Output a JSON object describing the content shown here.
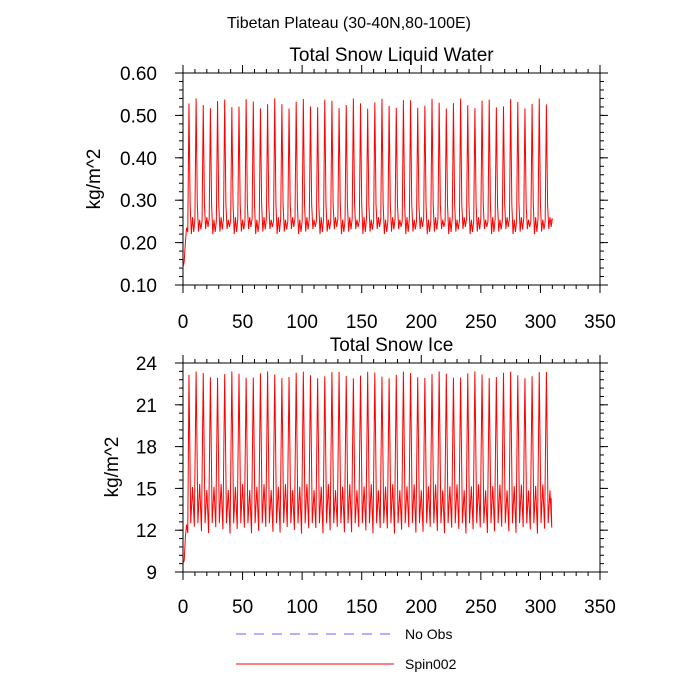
{
  "figure": {
    "title": "Tibetan Plateau (30-40N,80-100E)"
  },
  "chart_data": [
    {
      "type": "line",
      "title": "Total Snow Liquid Water",
      "xlabel": "",
      "ylabel": "kg/m^2",
      "xlim": [
        0,
        350
      ],
      "ylim": [
        0.1,
        0.6
      ],
      "xticks": [
        0,
        50,
        100,
        150,
        200,
        250,
        300,
        350
      ],
      "xtick_labels": [
        "0",
        "50",
        "100",
        "150",
        "200",
        "250",
        "300",
        "350"
      ],
      "yticks": [
        0.1,
        0.2,
        0.3,
        0.4,
        0.5,
        0.6
      ],
      "ytick_labels": [
        "0.10",
        "0.20",
        "0.30",
        "0.40",
        "0.50",
        "0.60"
      ],
      "series": [
        {
          "name": "Spin002",
          "color": "#ff0000",
          "pattern": {
            "start_value": 0.14,
            "x_start": 0,
            "x_end": 309,
            "period": 6,
            "first_peak_x": 5,
            "peak_value": 0.54,
            "baseline_value": 0.24,
            "baseline_range": [
              0.22,
              0.26
            ],
            "end_value": 0.25
          }
        }
      ]
    },
    {
      "type": "line",
      "title": "Total Snow Ice",
      "xlabel": "",
      "ylabel": "kg/m^2",
      "xlim": [
        0,
        350
      ],
      "ylim": [
        9,
        24
      ],
      "xticks": [
        0,
        50,
        100,
        150,
        200,
        250,
        300,
        350
      ],
      "xtick_labels": [
        "0",
        "50",
        "100",
        "150",
        "200",
        "250",
        "300",
        "350"
      ],
      "yticks": [
        9,
        12,
        15,
        18,
        21,
        24
      ],
      "ytick_labels": [
        "9",
        "12",
        "15",
        "18",
        "21",
        "24"
      ],
      "series": [
        {
          "name": "Spin002",
          "color": "#ff0000",
          "pattern": {
            "start_value": 9.6,
            "x_start": 0,
            "x_end": 309,
            "period": 6,
            "first_peak_x": 5,
            "peak_value": 23.4,
            "secondary_peak_value": 15.3,
            "trough_value": 12.2,
            "end_value": 14.3
          }
        }
      ]
    }
  ],
  "legend": {
    "placement": "bottom-center",
    "entries": [
      {
        "label": "No Obs",
        "color": "#6666ff",
        "style": "dashed"
      },
      {
        "label": "Spin002",
        "color": "#ff0000",
        "style": "solid"
      }
    ]
  }
}
